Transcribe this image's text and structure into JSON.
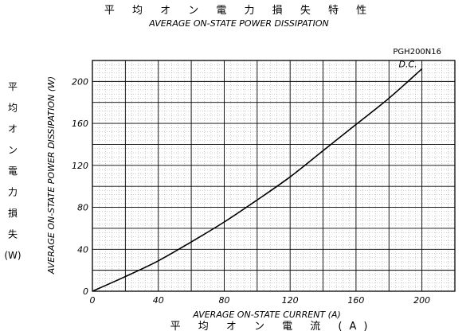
{
  "chart_data": {
    "type": "line",
    "title_jp": "平 均 オ ン 電 力 損 失 特 性",
    "title": "AVERAGE ON-STATE POWER DISSIPATION",
    "part_number": "PGH200N16",
    "xlabel": "AVERAGE ON-STATE CURRENT (A)",
    "xlabel_jp": "平 均 オ ン 電 流 (A)",
    "ylabel": "AVERAGE ON-STATE POWER DISSIPATION (W)",
    "ylabel_jp": [
      "平",
      "均",
      "オ",
      "ン",
      "電",
      "力",
      "損",
      "失",
      "(W)"
    ],
    "xlim": [
      0,
      220
    ],
    "ylim": [
      0,
      220
    ],
    "xticks": [
      "0",
      "40",
      "80",
      "120",
      "160",
      "200"
    ],
    "xtick_values": [
      0,
      40,
      80,
      120,
      160,
      200
    ],
    "yticks": [
      "0",
      "40",
      "80",
      "120",
      "160",
      "200"
    ],
    "ytick_values": [
      0,
      40,
      80,
      120,
      160,
      200
    ],
    "grid": true,
    "series": [
      {
        "name": "D.C.",
        "x": [
          0,
          20,
          40,
          60,
          80,
          100,
          120,
          140,
          160,
          180,
          200
        ],
        "y": [
          0,
          14,
          29,
          47,
          66,
          87,
          109,
          134,
          159,
          184,
          212
        ]
      }
    ]
  }
}
